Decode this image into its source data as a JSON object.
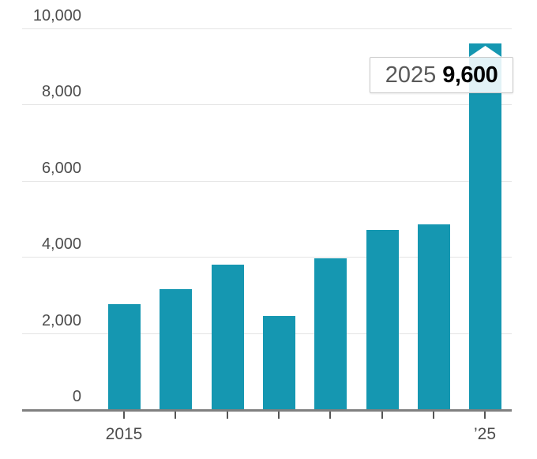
{
  "chart_data": {
    "type": "bar",
    "title": "",
    "xlabel": "",
    "ylabel": "",
    "categories": [
      "2015",
      "",
      "",
      "",
      "",
      "",
      "",
      "’25"
    ],
    "values": [
      2750,
      3150,
      3800,
      2450,
      3950,
      4700,
      4850,
      9600
    ],
    "ylim": [
      0,
      10000
    ],
    "yticks": [
      {
        "value": 0,
        "label": "0"
      },
      {
        "value": 2000,
        "label": "2,000"
      },
      {
        "value": 4000,
        "label": "4,000"
      },
      {
        "value": 6000,
        "label": "6,000"
      },
      {
        "value": 8000,
        "label": "8,000"
      },
      {
        "value": 10000,
        "label": "10,000"
      }
    ],
    "grid": "horizontal",
    "legend": "none",
    "tooltip": {
      "year": "2025",
      "value": "9,600",
      "target_bar_index": 7
    }
  },
  "colors": {
    "bar": "#1597b1",
    "grid": "#e4e4e4",
    "axis": "#808080",
    "tick": "#555555",
    "label_text": "#4d4d4d",
    "tooltip_border": "#c9c9c9",
    "tooltip_year_text": "#595959",
    "tooltip_value_text": "#000000"
  }
}
